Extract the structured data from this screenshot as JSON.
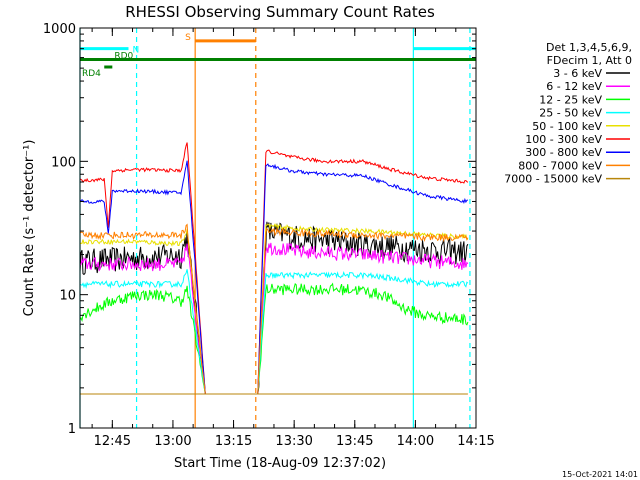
{
  "chart_data": {
    "type": "line",
    "title": "RHESSI Observing Summary Count Rates",
    "xlabel": "Start Time (18-Aug-09 12:37:02)",
    "ylabel": "Count Rate (s⁻¹ detector⁻¹)",
    "yscale": "log",
    "xlim_minutes": [
      0,
      98
    ],
    "ylim": [
      1,
      1000
    ],
    "x_ticks": [
      {
        "label": "12:45",
        "minute": 8
      },
      {
        "label": "13:00",
        "minute": 23
      },
      {
        "label": "13:15",
        "minute": 38
      },
      {
        "label": "13:30",
        "minute": 53
      },
      {
        "label": "13:45",
        "minute": 68
      },
      {
        "label": "14:00",
        "minute": 83
      },
      {
        "label": "14:15",
        "minute": 98
      }
    ],
    "y_ticks": [
      {
        "label": "1000",
        "value": 1000
      },
      {
        "label": "100",
        "value": 100
      },
      {
        "label": "10",
        "value": 10
      },
      {
        "label": "1",
        "value": 1
      }
    ],
    "legend": {
      "header": [
        "Det 1,3,4,5,6,9,",
        "FDecim 1, Att 0"
      ],
      "placement": "right"
    },
    "series": [
      {
        "name": "3 - 6 keV",
        "color": "#000000",
        "noise": 0.22,
        "points": [
          [
            0,
            18
          ],
          [
            14,
            19
          ],
          [
            25,
            20
          ],
          [
            26.5,
            28
          ],
          [
            31,
            1.8
          ],
          [
            33,
            1.8
          ],
          [
            42,
            1.8
          ],
          [
            44,
            1.8
          ],
          [
            46,
            30
          ],
          [
            55,
            27
          ],
          [
            70,
            24
          ],
          [
            86,
            22
          ],
          [
            96,
            21
          ]
        ]
      },
      {
        "name": "6 - 12 keV",
        "color": "#ff00ff",
        "noise": 0.12,
        "points": [
          [
            0,
            17
          ],
          [
            14,
            17
          ],
          [
            25,
            17
          ],
          [
            26.5,
            23
          ],
          [
            31,
            1.8
          ],
          [
            33,
            1.8
          ],
          [
            42,
            1.8
          ],
          [
            44,
            1.8
          ],
          [
            46,
            23
          ],
          [
            55,
            21
          ],
          [
            70,
            20
          ],
          [
            86,
            18
          ],
          [
            96,
            17
          ]
        ]
      },
      {
        "name": "12 - 25 keV",
        "color": "#00ff00",
        "noise": 0.1,
        "points": [
          [
            0,
            7
          ],
          [
            8,
            9
          ],
          [
            14,
            10
          ],
          [
            20,
            10
          ],
          [
            25,
            9
          ],
          [
            26.5,
            11
          ],
          [
            31,
            1.8
          ],
          [
            33,
            1.8
          ],
          [
            42,
            1.8
          ],
          [
            44,
            1.8
          ],
          [
            46,
            11
          ],
          [
            55,
            11
          ],
          [
            68,
            11
          ],
          [
            75,
            10
          ],
          [
            80,
            8
          ],
          [
            85,
            7
          ],
          [
            96,
            6.5
          ]
        ]
      },
      {
        "name": "25 - 50 keV",
        "color": "#00ffff",
        "noise": 0.05,
        "points": [
          [
            0,
            12
          ],
          [
            14,
            12
          ],
          [
            25,
            12
          ],
          [
            26.5,
            15
          ],
          [
            31,
            1.8
          ],
          [
            33,
            1.8
          ],
          [
            42,
            1.8
          ],
          [
            44,
            1.8
          ],
          [
            46,
            14
          ],
          [
            55,
            14
          ],
          [
            70,
            14
          ],
          [
            80,
            13
          ],
          [
            86,
            12
          ],
          [
            96,
            12
          ]
        ]
      },
      {
        "name": "50 - 100 keV",
        "color": "#e8e000",
        "noise": 0.04,
        "points": [
          [
            0,
            25
          ],
          [
            14,
            25
          ],
          [
            25,
            24
          ],
          [
            26.5,
            30
          ],
          [
            31,
            1.8
          ],
          [
            33,
            1.8
          ],
          [
            42,
            1.8
          ],
          [
            44,
            1.8
          ],
          [
            46,
            33
          ],
          [
            55,
            31
          ],
          [
            70,
            30
          ],
          [
            80,
            29
          ],
          [
            86,
            28
          ],
          [
            96,
            27
          ]
        ]
      },
      {
        "name": "100 - 300 keV",
        "color": "#ff0000",
        "noise": 0.03,
        "points": [
          [
            0,
            72
          ],
          [
            6,
            73
          ],
          [
            7,
            32
          ],
          [
            8,
            85
          ],
          [
            14,
            87
          ],
          [
            25,
            85
          ],
          [
            26.5,
            140
          ],
          [
            31,
            1.8
          ],
          [
            33,
            1.8
          ],
          [
            42,
            1.8
          ],
          [
            44,
            1.8
          ],
          [
            46,
            120
          ],
          [
            52,
            108
          ],
          [
            60,
            100
          ],
          [
            70,
            100
          ],
          [
            78,
            85
          ],
          [
            86,
            75
          ],
          [
            96,
            70
          ]
        ]
      },
      {
        "name": "300 - 800 keV",
        "color": "#0000ff",
        "noise": 0.03,
        "points": [
          [
            0,
            50
          ],
          [
            6,
            50
          ],
          [
            7,
            28
          ],
          [
            8,
            60
          ],
          [
            14,
            60
          ],
          [
            25,
            58
          ],
          [
            26.5,
            100
          ],
          [
            31,
            1.8
          ],
          [
            33,
            1.8
          ],
          [
            42,
            1.8
          ],
          [
            44,
            1.8
          ],
          [
            46,
            95
          ],
          [
            52,
            85
          ],
          [
            60,
            80
          ],
          [
            70,
            78
          ],
          [
            78,
            65
          ],
          [
            86,
            55
          ],
          [
            96,
            50
          ]
        ]
      },
      {
        "name": "800 - 7000 keV",
        "color": "#ff8000",
        "noise": 0.06,
        "points": [
          [
            0,
            28
          ],
          [
            14,
            28
          ],
          [
            25,
            28
          ],
          [
            26.5,
            32
          ],
          [
            31,
            1.8
          ],
          [
            33,
            1.8
          ],
          [
            42,
            1.8
          ],
          [
            44,
            1.8
          ],
          [
            46,
            30
          ],
          [
            55,
            29
          ],
          [
            70,
            28
          ],
          [
            86,
            27
          ],
          [
            96,
            27
          ]
        ]
      },
      {
        "name": "7000 - 15000 keV",
        "color": "#b8860b",
        "noise": 0.02,
        "points": [
          [
            0,
            1.8
          ],
          [
            96,
            1.8
          ]
        ]
      }
    ],
    "annotations": [
      {
        "label": "N",
        "color": "#00ffff",
        "type": "bar",
        "y": 700,
        "segments": [
          [
            0,
            12
          ],
          [
            82.5,
            98
          ]
        ]
      },
      {
        "label": "S",
        "color": "#ff8000",
        "type": "bar",
        "y": 800,
        "segments": [
          [
            28.5,
            43.5
          ]
        ]
      },
      {
        "label": "RD0",
        "color": "#008000",
        "type": "bar",
        "y": 580,
        "segments": [
          [
            0,
            98
          ]
        ]
      },
      {
        "label": "RD4",
        "color": "#008000",
        "type": "bar",
        "y": 510,
        "segments": [
          [
            6,
            8
          ]
        ]
      }
    ],
    "vertical_lines": [
      {
        "minute": 0,
        "color": "#00ffff",
        "style": "solid"
      },
      {
        "minute": 14,
        "color": "#00ffff",
        "style": "dashed"
      },
      {
        "minute": 82.5,
        "color": "#00ffff",
        "style": "solid"
      },
      {
        "minute": 96.5,
        "color": "#00ffff",
        "style": "dashed"
      },
      {
        "minute": 28.5,
        "color": "#ff8000",
        "style": "solid"
      },
      {
        "minute": 43.5,
        "color": "#ff8000",
        "style": "dashed"
      }
    ],
    "timestamp": "15-Oct-2021 14:01"
  }
}
